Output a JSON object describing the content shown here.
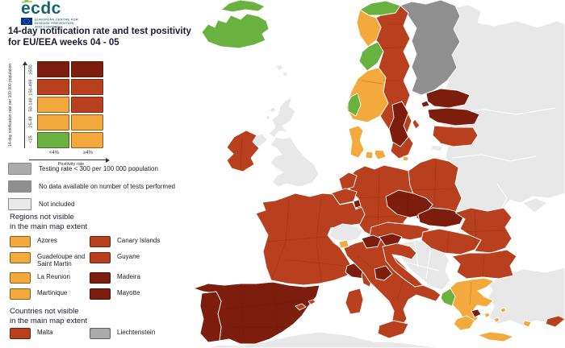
{
  "logo": {
    "brand": "ecdc",
    "subtext_line1": "EUROPEAN CENTRE FOR",
    "subtext_line2": "DISEASE PREVENTION",
    "subtext_line3": "AND CONTROL"
  },
  "title": {
    "line1": "14-day notification rate and test positivity",
    "line2": "for EU/EEA weeks 04 - 05"
  },
  "legend_matrix": {
    "y_axis_label": "14-day notification rate per 100 000 population",
    "x_axis_label": "Positivity rate",
    "columns": [
      "<4%",
      "≥4%"
    ],
    "rows": [
      {
        "label": "≥500",
        "cells": [
          "dark_red",
          "dark_red"
        ]
      },
      {
        "label": "150-499",
        "cells": [
          "red",
          "red"
        ]
      },
      {
        "label": "50-149",
        "cells": [
          "orange",
          "red"
        ]
      },
      {
        "label": "25-49",
        "cells": [
          "orange",
          "orange"
        ]
      },
      {
        "label": "<25",
        "cells": [
          "green",
          "orange"
        ]
      }
    ]
  },
  "legend_gray": {
    "items": [
      {
        "label": "Testing rate < 300 per 100 000 population",
        "color": "gray_testing"
      },
      {
        "label": "No data available on number of tests performed",
        "color": "gray_nodata"
      },
      {
        "label": "Not included",
        "color": "gray_not_included"
      }
    ]
  },
  "regions_not_visible": {
    "header_line1": "Regions not visible",
    "header_line2": "in the main map extent",
    "items": [
      {
        "label": "Azores",
        "color": "orange"
      },
      {
        "label": "Canary Islands",
        "color": "red"
      },
      {
        "label": "Guadeloupe and Saint Martin",
        "color": "orange"
      },
      {
        "label": "Guyane",
        "color": "red"
      },
      {
        "label": "La Reunion",
        "color": "orange"
      },
      {
        "label": "Madeira",
        "color": "dark_red"
      },
      {
        "label": "Martinique",
        "color": "orange"
      },
      {
        "label": "Mayotte",
        "color": "dark_red"
      }
    ]
  },
  "countries_not_visible": {
    "header_line1": "Countries not visible",
    "header_line2": "in the main map extent",
    "items": [
      {
        "label": "Malta",
        "color": "red"
      },
      {
        "label": "Liechtenstein",
        "color": "gray_testing"
      }
    ]
  },
  "map": {
    "colors": {
      "green": "#6ab240",
      "orange": "#f3a93c",
      "red": "#b8401f",
      "dark_red": "#7c1d0e",
      "gray_testing": "#ababab",
      "gray_nodata": "#8f8f8f",
      "gray_not_included": "#e8e8e8",
      "sea": "#ffffff"
    },
    "country_categories": {
      "iceland": "green",
      "svalbard": "green",
      "faroe_islands": "gray_not_included",
      "united_kingdom": "gray_not_included",
      "northern_ireland": "gray_not_included",
      "hebrides": "gray_not_included",
      "ireland": "red",
      "norway_finnmark": "green",
      "norway_nordland": "orange",
      "norway_trondelag": "green",
      "norway_south": "orange",
      "norway_bergen": "green",
      "sweden": "red",
      "sweden_south_central": "dark_red",
      "finland": "gray_nodata",
      "east_europe": "gray_not_included",
      "crimea": "gray_not_included",
      "estonia": "dark_red",
      "latvia": "dark_red",
      "lithuania": "red",
      "kaliningrad": "gray_not_included",
      "denmark": "orange",
      "poland": "red",
      "germany": "red",
      "netherlands": "red",
      "belgium": "red",
      "luxembourg": "dark_red",
      "czechia": "dark_red",
      "slovakia": "dark_red",
      "austria": "red",
      "switzerland": "gray_not_included",
      "aosta_valley": "orange",
      "france": "red",
      "france_southeast": "dark_red",
      "corsica": "red",
      "spain": "dark_red",
      "portugal": "dark_red",
      "balearic_islands": "red",
      "italy": "red",
      "italy_northeast": "dark_red",
      "italy_central": "dark_red",
      "sardinia": "red",
      "sicily": "red",
      "slovenia": "dark_red",
      "croatia": "red",
      "western_balkans": "gray_not_included",
      "hungary": "red",
      "romania": "red",
      "bulgaria": "red",
      "greece": "orange",
      "greece_northwest": "green",
      "attica": "dark_red",
      "crete": "orange",
      "aegean_islands": "orange",
      "cyprus": "red",
      "turkey": "gray_not_included",
      "north_africa": "gray_not_included"
    }
  }
}
